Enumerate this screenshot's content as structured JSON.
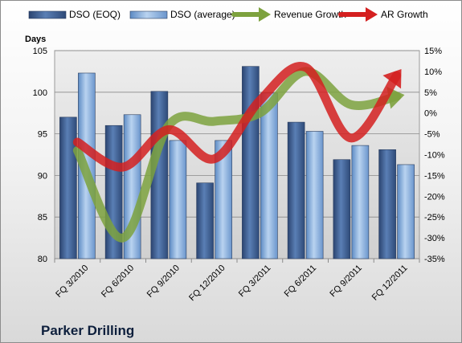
{
  "chart_data": {
    "type": "bar",
    "title": "",
    "company_label": "Parker Drilling",
    "ylabel": "Days",
    "y2label": "",
    "categories": [
      "FQ 3/2010",
      "FQ 6/2010",
      "FQ 9/2010",
      "FQ 12/2010",
      "FQ 3/2011",
      "FQ 6/2011",
      "FQ 9/2011",
      "FQ 12/2011"
    ],
    "ylim": [
      80,
      105
    ],
    "y_ticks": [
      80,
      85,
      90,
      95,
      100,
      105
    ],
    "y2lim": [
      -35,
      15
    ],
    "y2_ticks": [
      "15%",
      "10%",
      "5%",
      "0%",
      "-5%",
      "-10%",
      "-15%",
      "-20%",
      "-25%",
      "-30%",
      "-35%"
    ],
    "y2_tick_values": [
      15,
      10,
      5,
      0,
      -5,
      -10,
      -15,
      -20,
      -25,
      -30,
      -35
    ],
    "series": [
      {
        "name": "DSO (EOQ)",
        "kind": "bar",
        "axis": "left",
        "color": "#3f5f8f",
        "values": [
          97.0,
          96.0,
          100.1,
          89.1,
          103.1,
          96.4,
          91.9,
          93.1
        ]
      },
      {
        "name": "DSO (average)",
        "kind": "bar",
        "axis": "left",
        "color": "#7ea6d8",
        "values": [
          102.3,
          97.3,
          94.2,
          94.2,
          99.9,
          95.3,
          93.6,
          91.3
        ]
      },
      {
        "name": "Revenue Growth",
        "kind": "line",
        "axis": "right",
        "unit": "%",
        "color": "#7da23e",
        "values": [
          -9.0,
          -30.0,
          -3.0,
          -2.0,
          0.0,
          10.0,
          2.0,
          4.0
        ]
      },
      {
        "name": "AR Growth",
        "kind": "line",
        "axis": "right",
        "unit": "%",
        "color": "#d42020",
        "values": [
          -7.0,
          -13.0,
          -4.0,
          -11.0,
          3.0,
          11.0,
          -6.0,
          9.0
        ]
      }
    ],
    "grid": true,
    "legend_position": "top"
  }
}
